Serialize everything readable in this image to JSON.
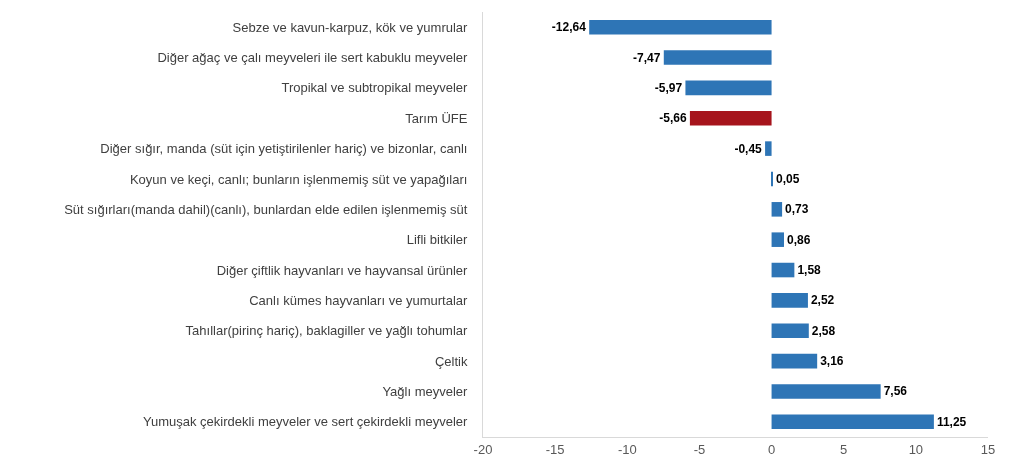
{
  "chart_data": {
    "type": "bar",
    "orientation": "horizontal",
    "categories": [
      "Sebze ve kavun-karpuz, kök ve yumrular",
      "Diğer ağaç ve çalı meyveleri ile sert kabuklu meyveler",
      "Tropikal ve subtropikal meyveler",
      "Tarım ÜFE",
      "Diğer sığır, manda (süt için yetiştirilenler hariç) ve bizonlar, canlı",
      "Koyun ve keçi, canlı; bunların işlenmemiş süt ve yapağıları",
      "Süt sığırları(manda dahil)(canlı), bunlardan elde edilen işlenmemiş süt",
      "Lifli bitkiler",
      "Diğer çiftlik hayvanları ve hayvansal ürünler",
      "Canlı kümes hayvanları ve yumurtalar",
      "Tahıllar(pirinç hariç), baklagiller ve yağlı tohumlar",
      "Çeltik",
      "Yağlı meyveler",
      "Yumuşak çekirdekli meyveler ve sert çekirdekli meyveler"
    ],
    "values": [
      -12.64,
      -7.47,
      -5.97,
      -5.66,
      -0.45,
      0.05,
      0.73,
      0.86,
      1.58,
      2.52,
      2.58,
      3.16,
      7.56,
      11.25
    ],
    "value_labels": [
      "-12,64",
      "-7,47",
      "-5,97",
      "-5,66",
      "-0,45",
      "0,05",
      "0,73",
      "0,86",
      "1,58",
      "2,52",
      "2,58",
      "3,16",
      "7,56",
      "11,25"
    ],
    "colors": [
      "#2e75b6",
      "#2e75b6",
      "#2e75b6",
      "#a6141c",
      "#2e75b6",
      "#2e75b6",
      "#2e75b6",
      "#2e75b6",
      "#2e75b6",
      "#2e75b6",
      "#2e75b6",
      "#2e75b6",
      "#2e75b6",
      "#2e75b6"
    ],
    "xlim": [
      -20,
      15
    ],
    "xticks": [
      -20,
      -15,
      -10,
      -5,
      0,
      5,
      10,
      15
    ]
  }
}
